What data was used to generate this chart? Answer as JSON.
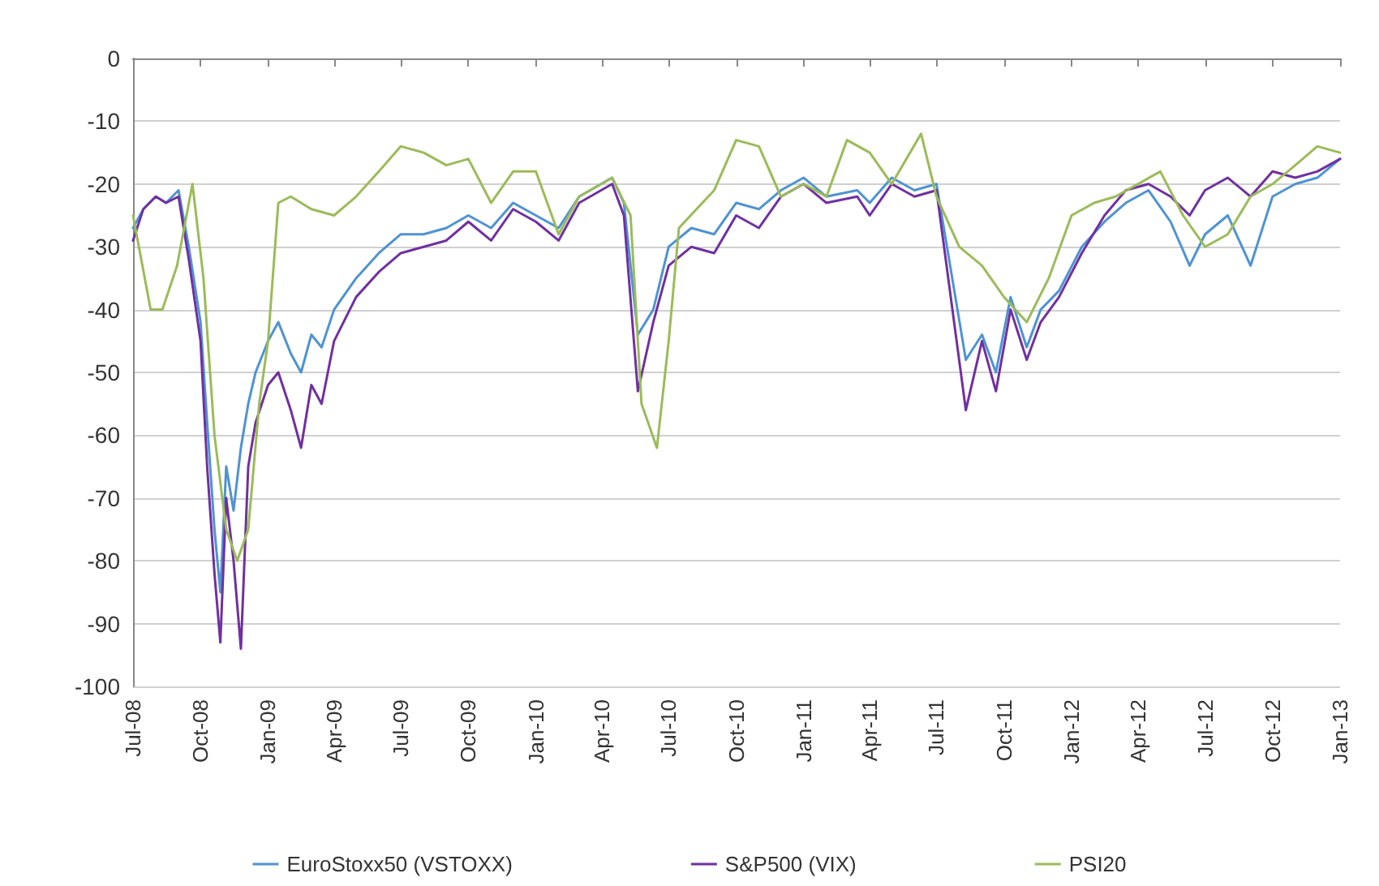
{
  "chart_data": {
    "type": "line",
    "xlim": [
      "2008-07-01",
      "2013-01-01"
    ],
    "xticks": [
      {
        "value": "2008-07-01",
        "label": "Jul-08"
      },
      {
        "value": "2008-10-01",
        "label": "Oct-08"
      },
      {
        "value": "2009-01-01",
        "label": "Jan-09"
      },
      {
        "value": "2009-04-01",
        "label": "Apr-09"
      },
      {
        "value": "2009-07-01",
        "label": "Jul-09"
      },
      {
        "value": "2009-10-01",
        "label": "Oct-09"
      },
      {
        "value": "2010-01-01",
        "label": "Jan-10"
      },
      {
        "value": "2010-04-01",
        "label": "Apr-10"
      },
      {
        "value": "2010-07-01",
        "label": "Jul-10"
      },
      {
        "value": "2010-10-01",
        "label": "Oct-10"
      },
      {
        "value": "2011-01-01",
        "label": "Jan-11"
      },
      {
        "value": "2011-04-01",
        "label": "Apr-11"
      },
      {
        "value": "2011-07-01",
        "label": "Jul-11"
      },
      {
        "value": "2011-10-01",
        "label": "Oct-11"
      },
      {
        "value": "2012-01-01",
        "label": "Jan-12"
      },
      {
        "value": "2012-04-01",
        "label": "Apr-12"
      },
      {
        "value": "2012-07-01",
        "label": "Jul-12"
      },
      {
        "value": "2012-10-01",
        "label": "Oct-12"
      },
      {
        "value": "2013-01-01",
        "label": "Jan-13"
      }
    ],
    "ylim": [
      -100,
      0
    ],
    "yticks": [
      -100,
      -90,
      -80,
      -70,
      -60,
      -50,
      -40,
      -30,
      -20,
      -10,
      0
    ],
    "grid": "y",
    "legend": "bottom",
    "marker": "none",
    "line_style": "solid",
    "series": [
      {
        "name": "EuroStoxx50 (VSTOXX)",
        "color": "#4f93d2",
        "x": [
          "2008-07-01",
          "2008-07-15",
          "2008-08-01",
          "2008-08-15",
          "2008-09-01",
          "2008-09-15",
          "2008-10-01",
          "2008-10-10",
          "2008-10-20",
          "2008-10-28",
          "2008-11-05",
          "2008-11-15",
          "2008-11-25",
          "2008-12-05",
          "2008-12-15",
          "2009-01-01",
          "2009-01-15",
          "2009-02-01",
          "2009-02-15",
          "2009-03-01",
          "2009-03-15",
          "2009-04-01",
          "2009-05-01",
          "2009-06-01",
          "2009-07-01",
          "2009-08-01",
          "2009-09-01",
          "2009-10-01",
          "2009-11-01",
          "2009-12-01",
          "2010-01-01",
          "2010-02-01",
          "2010-03-01",
          "2010-04-15",
          "2010-05-01",
          "2010-05-20",
          "2010-06-10",
          "2010-07-01",
          "2010-08-01",
          "2010-09-01",
          "2010-10-01",
          "2010-11-01",
          "2010-12-01",
          "2011-01-01",
          "2011-02-01",
          "2011-03-15",
          "2011-04-01",
          "2011-05-01",
          "2011-06-01",
          "2011-07-01",
          "2011-08-10",
          "2011-09-01",
          "2011-09-20",
          "2011-10-10",
          "2011-11-01",
          "2011-11-20",
          "2011-12-15",
          "2012-01-15",
          "2012-02-15",
          "2012-03-15",
          "2012-04-15",
          "2012-05-15",
          "2012-06-10",
          "2012-07-01",
          "2012-08-01",
          "2012-09-01",
          "2012-10-01",
          "2012-11-01",
          "2012-12-01",
          "2013-01-01"
        ],
        "values": [
          -27,
          -24,
          -22,
          -23,
          -21,
          -30,
          -42,
          -58,
          -75,
          -85,
          -65,
          -72,
          -62,
          -55,
          -50,
          -45,
          -42,
          -47,
          -50,
          -44,
          -46,
          -40,
          -35,
          -31,
          -28,
          -28,
          -27,
          -25,
          -27,
          -23,
          -25,
          -27,
          -22,
          -19,
          -23,
          -44,
          -40,
          -30,
          -27,
          -28,
          -23,
          -24,
          -21,
          -19,
          -22,
          -21,
          -23,
          -19,
          -21,
          -20,
          -48,
          -44,
          -50,
          -38,
          -46,
          -40,
          -37,
          -30,
          -26,
          -23,
          -21,
          -26,
          -33,
          -28,
          -25,
          -33,
          -22,
          -20,
          -19,
          -16
        ]
      },
      {
        "name": "S&P500 (VIX)",
        "color": "#7030a0",
        "x": [
          "2008-07-01",
          "2008-07-15",
          "2008-08-01",
          "2008-08-15",
          "2008-09-01",
          "2008-09-15",
          "2008-10-01",
          "2008-10-10",
          "2008-10-20",
          "2008-10-28",
          "2008-11-05",
          "2008-11-15",
          "2008-11-25",
          "2008-12-05",
          "2008-12-15",
          "2009-01-01",
          "2009-01-15",
          "2009-02-01",
          "2009-02-15",
          "2009-03-01",
          "2009-03-15",
          "2009-04-01",
          "2009-05-01",
          "2009-06-01",
          "2009-07-01",
          "2009-08-01",
          "2009-09-01",
          "2009-10-01",
          "2009-11-01",
          "2009-12-01",
          "2010-01-01",
          "2010-02-01",
          "2010-03-01",
          "2010-04-15",
          "2010-05-01",
          "2010-05-20",
          "2010-06-10",
          "2010-07-01",
          "2010-08-01",
          "2010-09-01",
          "2010-10-01",
          "2010-11-01",
          "2010-12-01",
          "2011-01-01",
          "2011-02-01",
          "2011-03-15",
          "2011-04-01",
          "2011-05-01",
          "2011-06-01",
          "2011-07-01",
          "2011-08-10",
          "2011-09-01",
          "2011-09-20",
          "2011-10-10",
          "2011-11-01",
          "2011-11-20",
          "2011-12-15",
          "2012-01-15",
          "2012-02-15",
          "2012-03-15",
          "2012-04-15",
          "2012-05-15",
          "2012-06-10",
          "2012-07-01",
          "2012-08-01",
          "2012-09-01",
          "2012-10-01",
          "2012-11-01",
          "2012-12-01",
          "2013-01-01"
        ],
        "values": [
          -29,
          -24,
          -22,
          -23,
          -22,
          -32,
          -45,
          -65,
          -82,
          -93,
          -70,
          -80,
          -94,
          -65,
          -58,
          -52,
          -50,
          -56,
          -62,
          -52,
          -55,
          -45,
          -38,
          -34,
          -31,
          -30,
          -29,
          -26,
          -29,
          -24,
          -26,
          -29,
          -23,
          -20,
          -25,
          -53,
          -42,
          -33,
          -30,
          -31,
          -25,
          -27,
          -22,
          -20,
          -23,
          -22,
          -25,
          -20,
          -22,
          -21,
          -56,
          -45,
          -53,
          -40,
          -48,
          -42,
          -38,
          -31,
          -25,
          -21,
          -20,
          -22,
          -25,
          -21,
          -19,
          -22,
          -18,
          -19,
          -18,
          -16
        ]
      },
      {
        "name": "PSI20",
        "color": "#9bbb59",
        "x": [
          "2008-07-01",
          "2008-07-25",
          "2008-08-10",
          "2008-08-30",
          "2008-09-20",
          "2008-10-05",
          "2008-10-20",
          "2008-11-05",
          "2008-11-20",
          "2008-12-05",
          "2008-12-20",
          "2009-01-01",
          "2009-01-15",
          "2009-02-01",
          "2009-03-01",
          "2009-04-01",
          "2009-05-01",
          "2009-06-01",
          "2009-07-01",
          "2009-08-01",
          "2009-09-01",
          "2009-10-01",
          "2009-11-01",
          "2009-12-01",
          "2010-01-01",
          "2010-02-01",
          "2010-03-01",
          "2010-04-15",
          "2010-05-10",
          "2010-05-25",
          "2010-06-15",
          "2010-07-01",
          "2010-07-15",
          "2010-09-01",
          "2010-10-01",
          "2010-11-01",
          "2010-12-01",
          "2011-01-01",
          "2011-02-01",
          "2011-03-01",
          "2011-04-01",
          "2011-05-01",
          "2011-06-10",
          "2011-07-01",
          "2011-08-01",
          "2011-09-01",
          "2011-10-01",
          "2011-11-01",
          "2011-12-01",
          "2012-01-01",
          "2012-02-01",
          "2012-03-01",
          "2012-05-01",
          "2012-06-01",
          "2012-07-01",
          "2012-08-01",
          "2012-09-01",
          "2012-10-01",
          "2012-11-01",
          "2012-12-01",
          "2013-01-01"
        ],
        "values": [
          -25,
          -40,
          -40,
          -33,
          -20,
          -35,
          -60,
          -75,
          -80,
          -75,
          -55,
          -45,
          -23,
          -22,
          -24,
          -25,
          -22,
          -18,
          -14,
          -15,
          -17,
          -16,
          -23,
          -18,
          -18,
          -28,
          -22,
          -19,
          -25,
          -55,
          -62,
          -45,
          -27,
          -21,
          -13,
          -14,
          -22,
          -20,
          -22,
          -13,
          -15,
          -20,
          -12,
          -22,
          -30,
          -33,
          -38,
          -42,
          -35,
          -25,
          -23,
          -22,
          -18,
          -25,
          -30,
          -28,
          -22,
          -20,
          -17,
          -14,
          -15
        ]
      }
    ]
  }
}
